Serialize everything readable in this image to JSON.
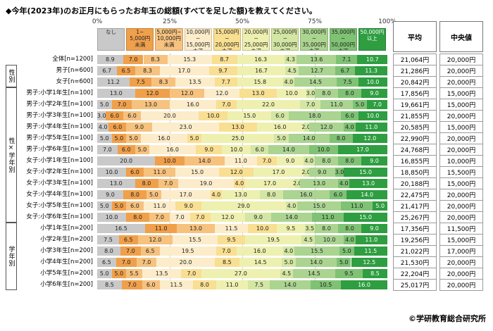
{
  "title": "◆今年(2023年)のお正月にもらったお年玉の総額(すべてを足した額)を教えてください。",
  "footer": {
    "credit": "©学研教育総合研究所"
  },
  "columns": {
    "average": "平均",
    "median": "中央値"
  },
  "axis": {
    "ticks": [
      "0%",
      "25%",
      "50%",
      "75%",
      "100%"
    ],
    "positions": [
      0,
      25,
      50,
      75,
      100
    ]
  },
  "groups": [
    {
      "label": "性別",
      "start": 1,
      "end": 2
    },
    {
      "label": "性×学年別",
      "start": 3,
      "end": 14
    },
    {
      "label": "学年別",
      "start": 15,
      "end": 20
    }
  ],
  "chart_data": {
    "type": "bar",
    "subtype": "horizontal-stacked-100pct",
    "unit": "%",
    "xlim": [
      0,
      100
    ],
    "legend_position": "top",
    "legend": [
      {
        "label": "なし",
        "color": "#c9c9c9"
      },
      {
        "label": "1~\n5,000円\n未満",
        "color": "#f0a04b"
      },
      {
        "label": "5,000円~\n10,000円\n未満",
        "color": "#f6c27e"
      },
      {
        "label": "10,000円~\n15,000円\n未満",
        "color": "#fceccA"
      },
      {
        "label": "15,000円~\n20,000円\n未満",
        "color": "#f8df92"
      },
      {
        "label": "20,000円~\n25,000円\n未満",
        "color": "#eef0b0"
      },
      {
        "label": "25,000円~\n30,000円\n未満",
        "color": "#d3e6a3"
      },
      {
        "label": "30,000円~\n35,000円\n未満",
        "color": "#abd491"
      },
      {
        "label": "35,000円~\n50,000円\n未満",
        "color": "#7fc274"
      },
      {
        "label": "50,000円\n以上",
        "color": "#2e9e41",
        "text_color": "#ffffff"
      }
    ],
    "rows": [
      {
        "label": "全体[n=1200]",
        "values": [
          8.9,
          7.0,
          8.3,
          15.3,
          8.7,
          16.3,
          4.3,
          13.6,
          7.1,
          10.7
        ],
        "average": "21,064円",
        "median": "20,000円"
      },
      {
        "label": "男子[n=600]",
        "values": [
          6.7,
          6.5,
          8.3,
          17.0,
          9.7,
          16.7,
          4.5,
          12.7,
          6.7,
          11.3
        ],
        "average": "21,286円",
        "median": "20,000円"
      },
      {
        "label": "女子[n=600]",
        "values": [
          11.2,
          7.5,
          8.3,
          13.5,
          7.7,
          15.8,
          4.0,
          14.5,
          7.5,
          10.0
        ],
        "average": "20,842円",
        "median": "20,000円"
      },
      {
        "label": "男子:小学1年生[n=100]",
        "values": [
          13.0,
          12.0,
          12.0,
          12.0,
          13.0,
          10.0,
          3.0,
          8.0,
          8.0,
          9.0
        ],
        "average": "17,856円",
        "median": "15,000円"
      },
      {
        "label": "男子:小学2年生[n=100]",
        "values": [
          5.0,
          7.0,
          13.0,
          16.0,
          7.0,
          22.0,
          7.0,
          11.0,
          5.0,
          7.0
        ],
        "average": "19,661円",
        "median": "15,000円"
      },
      {
        "label": "男子:小学3年生[n=100]",
        "values": [
          3.0,
          6.0,
          6.0,
          20.0,
          10.0,
          15.0,
          6.0,
          18.0,
          6.0,
          10.0
        ],
        "average": "21,855円",
        "median": "20,000円"
      },
      {
        "label": "男子:小学4年生[n=100]",
        "values": [
          4.0,
          6.0,
          9.0,
          23.0,
          13.0,
          16.0,
          2.0,
          12.0,
          4.0,
          11.0
        ],
        "average": "20,585円",
        "median": "15,000円"
      },
      {
        "label": "男子:小学5年生[n=100]",
        "values": [
          5.0,
          5.0,
          5.0,
          16.0,
          5.0,
          25.0,
          5.0,
          14.0,
          8.0,
          12.0
        ],
        "average": "22,990円",
        "median": "20,000円"
      },
      {
        "label": "男子:小学6年生[n=100]",
        "values": [
          7.0,
          6.0,
          5.0,
          16.0,
          9.0,
          10.0,
          6.0,
          14.0,
          10.0,
          17.0
        ],
        "average": "24,768円",
        "median": "20,000円"
      },
      {
        "label": "女子:小学1年生[n=100]",
        "values": [
          20.0,
          10.0,
          14.0,
          11.0,
          7.0,
          9.0,
          4.0,
          8.0,
          8.0,
          9.0
        ],
        "average": "16,855円",
        "median": "10,000円"
      },
      {
        "label": "女子:小学2年生[n=100]",
        "values": [
          10.0,
          6.0,
          11.0,
          15.0,
          12.0,
          17.0,
          2.0,
          9.0,
          3.0,
          15.0
        ],
        "average": "18,850円",
        "median": "15,500円"
      },
      {
        "label": "女子:小学3年生[n=100]",
        "values": [
          13.0,
          8.0,
          7.0,
          19.0,
          4.0,
          17.0,
          2.0,
          13.0,
          4.0,
          13.0
        ],
        "average": "20,188円",
        "median": "15,000円"
      },
      {
        "label": "女子:小学4年生[n=100]",
        "values": [
          9.0,
          8.0,
          5.0,
          17.0,
          4.0,
          13.0,
          8.0,
          16.0,
          6.0,
          14.0
        ],
        "average": "22,475円",
        "median": "20,000円"
      },
      {
        "label": "女子:小学5年生[n=100]",
        "values": [
          5.0,
          5.0,
          6.0,
          11.0,
          9.0,
          29.0,
          4.0,
          15.0,
          11.0,
          5.0
        ],
        "average": "21,417円",
        "median": "20,000円"
      },
      {
        "label": "女子:小学6年生[n=100]",
        "values": [
          10.0,
          8.0,
          7.0,
          7.0,
          7.0,
          12.0,
          9.0,
          14.0,
          11.0,
          15.0
        ],
        "average": "25,267円",
        "median": "20,000円"
      },
      {
        "label": "小学1年生[n=200]",
        "values": [
          16.5,
          11.0,
          13.0,
          11.5,
          10.0,
          9.5,
          3.5,
          8.0,
          8.0,
          9.0
        ],
        "average": "17,356円",
        "median": "11,500円"
      },
      {
        "label": "小学2年生[n=200]",
        "values": [
          7.5,
          6.5,
          12.0,
          15.5,
          9.5,
          19.5,
          4.5,
          10.0,
          4.0,
          11.0
        ],
        "average": "19,256円",
        "median": "15,000円"
      },
      {
        "label": "小学3年生[n=200]",
        "values": [
          8.0,
          7.0,
          6.5,
          19.5,
          7.0,
          16.0,
          4.0,
          15.5,
          5.0,
          11.5
        ],
        "average": "21,022円",
        "median": "17,000円"
      },
      {
        "label": "小学4年生[n=200]",
        "values": [
          6.5,
          7.0,
          7.0,
          20.0,
          8.5,
          14.5,
          5.0,
          14.0,
          5.0,
          12.5
        ],
        "average": "21,530円",
        "median": "20,000円"
      },
      {
        "label": "小学5年生[n=200]",
        "values": [
          5.0,
          5.0,
          5.5,
          13.5,
          7.0,
          27.0,
          4.5,
          14.5,
          9.5,
          8.5
        ],
        "average": "22,204円",
        "median": "20,000円"
      },
      {
        "label": "小学6年生[n=200]",
        "values": [
          8.5,
          7.0,
          6.0,
          11.5,
          8.0,
          11.0,
          7.5,
          14.0,
          10.5,
          16.0
        ],
        "average": "25,017円",
        "median": "20,000円"
      }
    ]
  }
}
